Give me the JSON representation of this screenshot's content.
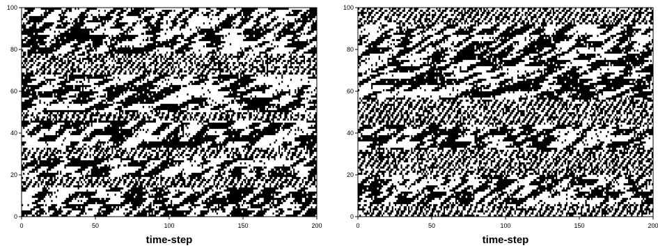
{
  "chart_data": [
    {
      "type": "heatmap",
      "xlabel": "time-step",
      "ylabel": "",
      "xlim": [
        0,
        200
      ],
      "ylim": [
        0,
        100
      ],
      "x_ticks": [
        0,
        50,
        100,
        150,
        200
      ],
      "y_ticks": [
        0,
        20,
        40,
        60,
        80,
        100
      ],
      "colors": [
        "#000000",
        "#ffffff"
      ],
      "grid": false,
      "pattern": {
        "cells_per_row": 200,
        "rows": 100,
        "regimes": [
          {
            "y": [
              0,
              4
            ],
            "slope": 0.9,
            "band": 3.0
          },
          {
            "y": [
              4,
              14
            ],
            "slope": 1.1,
            "band": 5.0
          },
          {
            "y": [
              14,
              19
            ],
            "slope": -0.6,
            "band": 2.0
          },
          {
            "y": [
              19,
              28
            ],
            "slope": 1.3,
            "band": 4.5
          },
          {
            "y": [
              28,
              33
            ],
            "slope": -0.5,
            "band": 2.5
          },
          {
            "y": [
              33,
              46
            ],
            "slope": 1.0,
            "band": 6.0
          },
          {
            "y": [
              46,
              50
            ],
            "slope": -0.8,
            "band": 2.0
          },
          {
            "y": [
              50,
              68
            ],
            "slope": 1.7,
            "band": 6.5
          },
          {
            "y": [
              68,
              78
            ],
            "slope": -0.4,
            "band": 2.0
          },
          {
            "y": [
              78,
              90
            ],
            "slope": 1.4,
            "band": 5.0
          },
          {
            "y": [
              90,
              100
            ],
            "slope": 1.0,
            "band": 3.5
          }
        ]
      }
    },
    {
      "type": "heatmap",
      "xlabel": "time-step",
      "ylabel": "",
      "xlim": [
        0,
        200
      ],
      "ylim": [
        0,
        100
      ],
      "x_ticks": [
        0,
        50,
        100,
        150,
        200
      ],
      "y_ticks": [
        0,
        20,
        40,
        60,
        80,
        100
      ],
      "colors": [
        "#000000",
        "#ffffff"
      ],
      "grid": false,
      "pattern": {
        "cells_per_row": 200,
        "rows": 100,
        "regimes": [
          {
            "y": [
              0,
              6
            ],
            "slope": -0.7,
            "band": 2.0
          },
          {
            "y": [
              6,
              20
            ],
            "slope": 1.1,
            "band": 4.0
          },
          {
            "y": [
              20,
              32
            ],
            "slope": -0.5,
            "band": 2.5
          },
          {
            "y": [
              32,
              44
            ],
            "slope": 1.2,
            "band": 4.5
          },
          {
            "y": [
              44,
              56
            ],
            "slope": -0.6,
            "band": 2.0
          },
          {
            "y": [
              56,
              78
            ],
            "slope": 1.8,
            "band": 6.0
          },
          {
            "y": [
              78,
              92
            ],
            "slope": 1.2,
            "band": 4.0
          },
          {
            "y": [
              92,
              100
            ],
            "slope": -0.5,
            "band": 2.0
          }
        ]
      }
    }
  ]
}
